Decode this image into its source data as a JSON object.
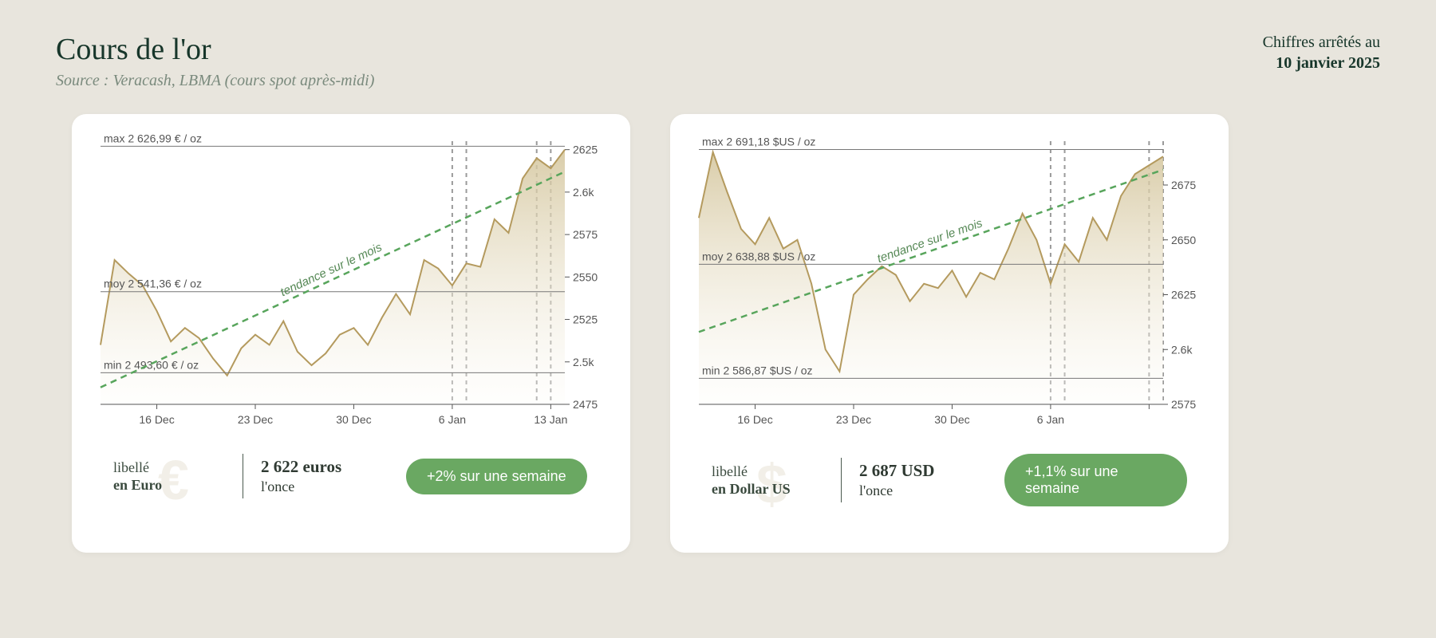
{
  "header": {
    "title": "Cours de l'or",
    "source": "Source : Veracash, LBMA (cours spot après-midi)",
    "as_of_label": "Chiffres arrêtés au",
    "as_of_date": "10 janvier 2025"
  },
  "style": {
    "page_bg": "#e8e5dd",
    "card_bg": "#ffffff",
    "title_color": "#17362a",
    "source_color": "#7a8a7d",
    "line_color": "#b49a5e",
    "area_top": "#d3c49a",
    "area_bottom": "#fdfcf8",
    "grid_color": "#bfbfbf",
    "axis_color": "#555555",
    "trend_color": "#58a55c",
    "ref_line_color": "#777777",
    "vband_color": "#9a9a9a",
    "badge_bg": "#6aa862",
    "badge_fg": "#ffffff",
    "watermark_color": "#f2efe8"
  },
  "charts": [
    {
      "id": "eur",
      "currency_label_line1": "libellé",
      "currency_label_line2": "en Euro",
      "watermark": "€",
      "price_value_line": "2 622 euros",
      "price_unit_line": "l'once",
      "badge_text": "+2% sur une semaine",
      "max_label": "max 2 626,99 € / oz",
      "moy_label": "moy 2 541,36 € / oz",
      "min_label": "min 2 493,60 € / oz",
      "trend_label": "tendance sur le mois",
      "y_min": 2475,
      "y_max": 2630,
      "y_ticks": [
        2475,
        2500,
        2525,
        2550,
        2575,
        2600,
        2625
      ],
      "y_tick_labels": [
        "2475",
        "2.5k",
        "2525",
        "2550",
        "2575",
        "2.6k",
        "2625"
      ],
      "x_ticks": [
        4,
        11,
        18,
        25,
        32
      ],
      "x_tick_labels": [
        "16 Dec",
        "23 Dec",
        "30 Dec",
        "6 Jan",
        "13 Jan"
      ],
      "n_points": 34,
      "ref_max": 2626.99,
      "ref_moy": 2541.36,
      "ref_min": 2493.6,
      "vbands": [
        [
          25,
          26
        ],
        [
          31,
          32
        ]
      ],
      "trend": [
        2485,
        2612
      ],
      "values": [
        2510,
        2560,
        2552,
        2545,
        2530,
        2512,
        2520,
        2514,
        2502,
        2492,
        2508,
        2516,
        2510,
        2524,
        2506,
        2498,
        2505,
        2516,
        2520,
        2510,
        2526,
        2540,
        2528,
        2560,
        2555,
        2545,
        2558,
        2556,
        2584,
        2576,
        2608,
        2620,
        2614,
        2625
      ]
    },
    {
      "id": "usd",
      "currency_label_line1": "libellé",
      "currency_label_line2": "en Dollar US",
      "watermark": "$",
      "price_value_line": "2 687  USD",
      "price_unit_line": "l'once",
      "badge_text": "+1,1% sur une semaine",
      "max_label": "max 2 691,18 $US / oz",
      "moy_label": "moy 2 638,88 $US / oz",
      "min_label": "min 2 586,87 $US / oz",
      "trend_label": "tendance sur le mois",
      "y_min": 2575,
      "y_max": 2695,
      "y_ticks": [
        2575,
        2600,
        2625,
        2650,
        2675
      ],
      "y_tick_labels": [
        "2575",
        "2.6k",
        "2625",
        "2650",
        "2675"
      ],
      "x_ticks": [
        4,
        11,
        18,
        25,
        32
      ],
      "x_tick_labels": [
        "16 Dec",
        "23 Dec",
        "30 Dec",
        "6 Jan",
        ""
      ],
      "n_points": 34,
      "ref_max": 2691.18,
      "ref_moy": 2638.88,
      "ref_min": 2586.87,
      "vbands": [
        [
          25,
          26
        ],
        [
          32,
          33
        ]
      ],
      "trend": [
        2608,
        2682
      ],
      "values": [
        2660,
        2690,
        2672,
        2655,
        2648,
        2660,
        2646,
        2650,
        2630,
        2600,
        2590,
        2625,
        2632,
        2638,
        2634,
        2622,
        2630,
        2628,
        2636,
        2624,
        2635,
        2632,
        2646,
        2662,
        2650,
        2630,
        2648,
        2640,
        2660,
        2650,
        2670,
        2680,
        2684,
        2688
      ]
    }
  ]
}
